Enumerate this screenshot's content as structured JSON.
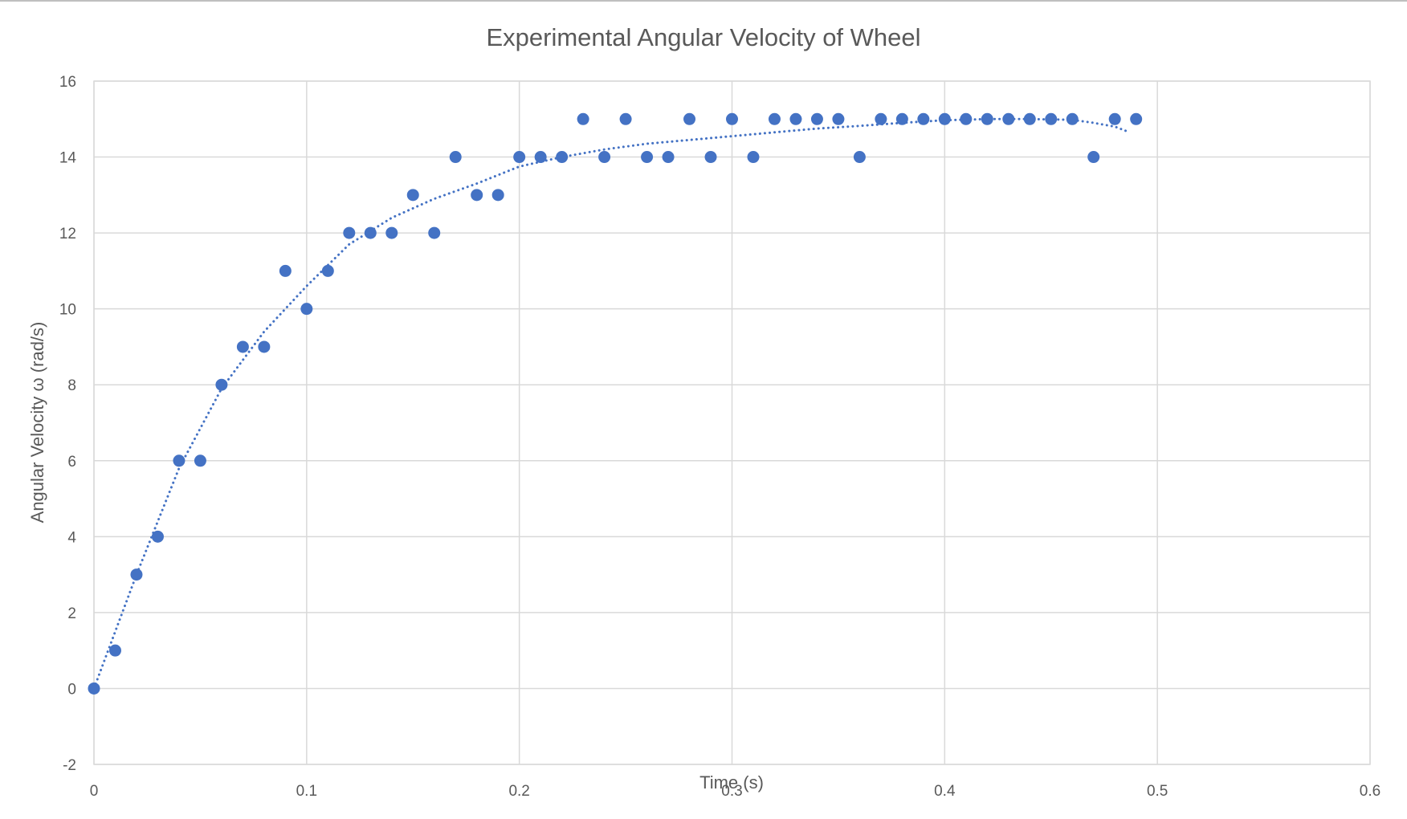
{
  "chart_data": {
    "type": "scatter",
    "title": "Experimental Angular Velocity of Wheel",
    "xlabel": "Time (s)",
    "ylabel": "Angular Velocity ω (rad/s)",
    "xlim": [
      0,
      0.6
    ],
    "ylim": [
      -2,
      16
    ],
    "x_ticks": [
      0,
      0.1,
      0.2,
      0.3,
      0.4,
      0.5,
      0.6
    ],
    "x_tick_labels": [
      "0",
      "0.1",
      "0.2",
      "0.3",
      "0.4",
      "0.5",
      "0.6"
    ],
    "y_ticks": [
      -2,
      0,
      2,
      4,
      6,
      8,
      10,
      12,
      14,
      16
    ],
    "y_tick_labels": [
      "-2",
      "0",
      "2",
      "4",
      "6",
      "8",
      "10",
      "12",
      "14",
      "16"
    ],
    "grid": true,
    "legend": "none",
    "marker_color": "#4472c4",
    "series": [
      {
        "x": [
          0,
          0.01,
          0.02,
          0.03,
          0.04,
          0.05,
          0.06,
          0.07,
          0.08,
          0.09,
          0.1,
          0.11,
          0.12,
          0.13,
          0.14,
          0.15,
          0.16,
          0.17,
          0.18,
          0.19,
          0.2,
          0.21,
          0.22,
          0.23,
          0.24,
          0.25,
          0.26,
          0.27,
          0.28,
          0.29,
          0.3,
          0.31,
          0.32,
          0.33,
          0.34,
          0.35,
          0.36,
          0.37,
          0.38,
          0.39,
          0.4,
          0.41,
          0.42,
          0.43,
          0.44,
          0.45,
          0.46,
          0.47,
          0.48,
          0.49
        ],
        "y": [
          0,
          1,
          3,
          4,
          6,
          6,
          8,
          9,
          9,
          11,
          10,
          11,
          12,
          12,
          12,
          13,
          12,
          14,
          13,
          13,
          14,
          14,
          14,
          15,
          14,
          15,
          14,
          14,
          15,
          14,
          15,
          14,
          15,
          15,
          15,
          15,
          14,
          15,
          15,
          15,
          15,
          15,
          15,
          15,
          15,
          15,
          15,
          14,
          15,
          15
        ]
      }
    ],
    "trendline": {
      "type": "polynomial",
      "style": "dotted",
      "color": "#4472c4",
      "x": [
        0,
        0.02,
        0.04,
        0.06,
        0.08,
        0.1,
        0.12,
        0.14,
        0.16,
        0.18,
        0.2,
        0.22,
        0.24,
        0.26,
        0.28,
        0.3,
        0.32,
        0.34,
        0.36,
        0.38,
        0.4,
        0.42,
        0.44,
        0.46,
        0.47,
        0.48,
        0.487
      ],
      "y": [
        0,
        3.0,
        5.8,
        7.9,
        9.4,
        10.6,
        11.7,
        12.4,
        12.9,
        13.3,
        13.75,
        14.0,
        14.2,
        14.35,
        14.45,
        14.55,
        14.65,
        14.75,
        14.82,
        14.9,
        14.97,
        15.0,
        15.0,
        14.98,
        14.9,
        14.8,
        14.65
      ]
    }
  }
}
